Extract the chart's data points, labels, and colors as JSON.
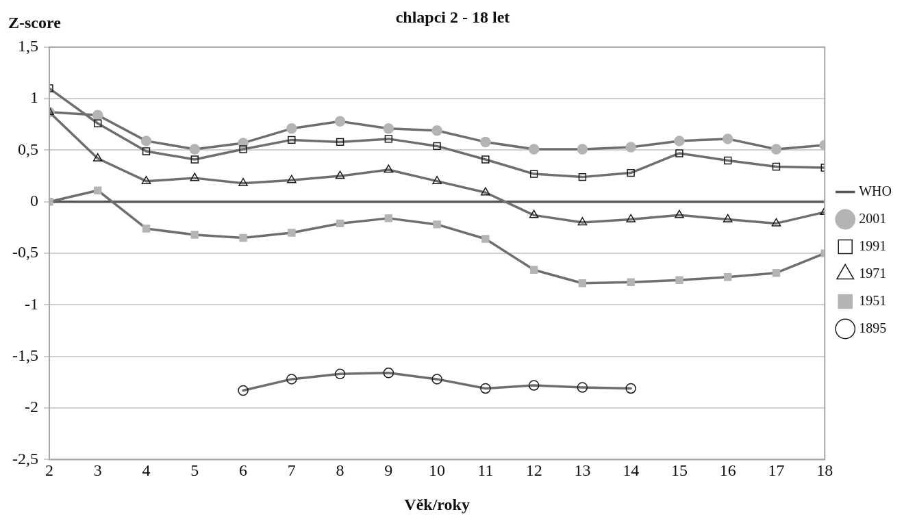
{
  "chart_data": {
    "type": "line",
    "title": "chlapci 2 - 18 let",
    "xlabel": "Věk/roky",
    "ylabel": "Z-score",
    "x": [
      2,
      3,
      4,
      5,
      6,
      7,
      8,
      9,
      10,
      11,
      12,
      13,
      14,
      15,
      16,
      17,
      18
    ],
    "xlim": [
      2,
      18
    ],
    "xticks": [
      2,
      3,
      4,
      5,
      6,
      7,
      8,
      9,
      10,
      11,
      12,
      13,
      14,
      15,
      16,
      17,
      18
    ],
    "ylim": [
      -2.5,
      1.5
    ],
    "yticks": [
      {
        "value": -2.5,
        "label": "-2,5"
      },
      -2,
      {
        "value": -1.5,
        "label": "-1,5"
      },
      -1,
      {
        "value": -0.5,
        "label": "-0,5"
      },
      0,
      {
        "value": 0.5,
        "label": "0,5"
      },
      1,
      {
        "value": 1.5,
        "label": "1,5"
      }
    ],
    "grid": "y",
    "legend": "right",
    "line_style": "solid",
    "series": [
      {
        "name": "WHO",
        "color": "#555557",
        "marker": "none",
        "values": [
          0,
          0,
          0,
          0,
          0,
          0,
          0,
          0,
          0,
          0,
          0,
          0,
          0,
          0,
          0,
          0,
          0
        ]
      },
      {
        "name": "2001",
        "color": "#6e6e70",
        "marker": "circle",
        "colors": [
          "#b4b4b6",
          "#b4b4b6",
          "#b4b4b6",
          "#b4b4b6",
          "#b4b4b6",
          "#b4b4b6",
          "#b4b4b6",
          "#b4b4b6",
          "#b4b4b6",
          "#b4b4b6",
          "#b4b4b6",
          "#b4b4b6",
          "#b4b4b6",
          "#b4b4b6",
          "#b4b4b6",
          "#b4b4b6",
          "#b4b4b6"
        ],
        "values": [
          0.87,
          0.84,
          0.59,
          0.51,
          0.57,
          0.71,
          0.78,
          0.71,
          0.69,
          0.58,
          0.51,
          0.51,
          0.53,
          0.59,
          0.61,
          0.51,
          0.55
        ]
      },
      {
        "name": "1991",
        "color": "#6e6e70",
        "marker": "square",
        "values": [
          1.1,
          0.76,
          0.49,
          0.41,
          0.51,
          0.6,
          0.58,
          0.61,
          0.54,
          0.41,
          0.27,
          0.24,
          0.28,
          0.47,
          0.4,
          0.34,
          0.33
        ]
      },
      {
        "name": "1971",
        "color": "#6e6e70",
        "marker": "triangle",
        "values": [
          0.87,
          0.42,
          0.2,
          0.23,
          0.18,
          0.21,
          0.25,
          0.31,
          0.2,
          0.09,
          -0.13,
          -0.2,
          -0.17,
          -0.13,
          -0.17,
          -0.21,
          -0.1
        ]
      },
      {
        "name": "1951",
        "color": "#6e6e70",
        "marker": "square",
        "colors": [
          "#b4b4b6",
          "#b4b4b6",
          "#b4b4b6",
          "#b4b4b6",
          "#b4b4b6",
          "#b4b4b6",
          "#b4b4b6",
          "#b4b4b6",
          "#b4b4b6",
          "#b4b4b6",
          "#b4b4b6",
          "#b4b4b6",
          "#b4b4b6",
          "#b4b4b6",
          "#b4b4b6",
          "#b4b4b6",
          "#b4b4b6"
        ],
        "values": [
          0,
          0.11,
          -0.26,
          -0.32,
          -0.35,
          -0.3,
          -0.21,
          -0.16,
          -0.22,
          -0.36,
          -0.66,
          -0.79,
          -0.78,
          -0.76,
          -0.73,
          -0.69,
          -0.5
        ]
      },
      {
        "name": "1895",
        "color": "#6e6e70",
        "marker": "circle",
        "values": [
          null,
          null,
          null,
          null,
          -1.83,
          -1.72,
          -1.67,
          -1.66,
          -1.72,
          -1.81,
          -1.78,
          -1.8,
          -1.81,
          null,
          null,
          null,
          null
        ]
      }
    ]
  }
}
